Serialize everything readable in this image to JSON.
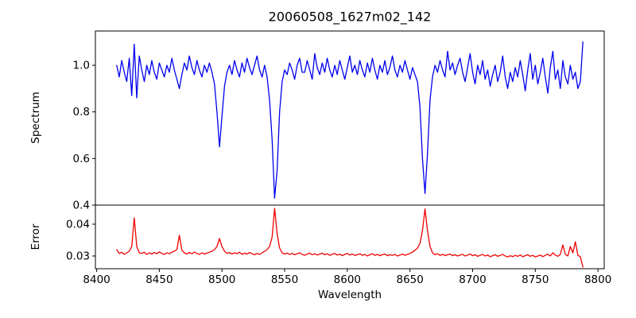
{
  "figure": {
    "background": "#ffffff",
    "spine_color": "#000000"
  },
  "chart_data": {
    "type": "line",
    "title": "20060508_1627m02_142",
    "xlabel": "Wavelength",
    "grid": false,
    "legend": null,
    "xlim": [
      8399,
      8805
    ],
    "xticks": [
      8400,
      8450,
      8500,
      8550,
      8600,
      8650,
      8700,
      8750,
      8800
    ],
    "xtick_labels": [
      "8400",
      "8450",
      "8500",
      "8550",
      "8600",
      "8650",
      "8700",
      "8750",
      "8800"
    ],
    "annotations": {
      "continuum_level": 1.0,
      "absorption_lines_wavelength": [
        8498,
        8542,
        8662
      ],
      "absorption_line_min_flux": [
        0.65,
        0.43,
        0.45
      ],
      "error_baseline": 0.03,
      "error_peaks_wavelength": [
        8430,
        8466,
        8498,
        8542,
        8662
      ],
      "error_peak_values": [
        0.042,
        0.0365,
        0.0355,
        0.045,
        0.0448
      ]
    },
    "subplots": [
      {
        "name": "spectrum",
        "ylabel": "Spectrum",
        "ylim": [
          0.4,
          1.147
        ],
        "yticks": [
          0.4,
          0.6,
          0.8,
          1.0
        ],
        "ytick_labels": [
          "0.4",
          "0.6",
          "0.8",
          "1.0"
        ],
        "line_color": "#0000ee",
        "x_start": 8416,
        "x_step": 2,
        "values": [
          1.0,
          0.95,
          1.02,
          0.97,
          0.93,
          1.03,
          0.87,
          1.09,
          0.86,
          1.04,
          0.98,
          0.93,
          1.0,
          0.96,
          1.02,
          0.97,
          0.94,
          1.01,
          0.98,
          0.95,
          1.0,
          0.97,
          1.03,
          0.98,
          0.94,
          0.9,
          0.96,
          1.01,
          0.98,
          1.04,
          0.99,
          0.96,
          1.02,
          0.98,
          0.95,
          1.0,
          0.97,
          1.01,
          0.97,
          0.92,
          0.8,
          0.65,
          0.78,
          0.91,
          0.97,
          1.0,
          0.96,
          1.02,
          0.98,
          0.95,
          1.01,
          0.97,
          1.03,
          0.99,
          0.96,
          1.0,
          1.04,
          0.98,
          0.95,
          1.0,
          0.95,
          0.85,
          0.68,
          0.43,
          0.55,
          0.8,
          0.93,
          0.98,
          0.96,
          1.01,
          0.98,
          0.94,
          1.0,
          1.03,
          0.97,
          0.97,
          1.02,
          0.98,
          0.94,
          1.05,
          0.99,
          0.96,
          1.01,
          0.97,
          1.03,
          0.98,
          0.95,
          1.0,
          0.96,
          1.02,
          0.98,
          0.94,
          0.99,
          1.04,
          0.97,
          1.0,
          0.96,
          1.02,
          0.98,
          0.95,
          1.01,
          0.97,
          1.03,
          0.98,
          0.94,
          1.0,
          0.97,
          1.02,
          0.96,
          0.99,
          1.04,
          0.98,
          0.95,
          1.0,
          0.97,
          1.02,
          0.98,
          0.94,
          0.99,
          0.96,
          0.93,
          0.82,
          0.6,
          0.45,
          0.62,
          0.85,
          0.95,
          1.0,
          0.97,
          1.02,
          0.98,
          0.95,
          1.06,
          0.98,
          1.01,
          0.96,
          1.0,
          1.03,
          0.97,
          0.93,
          0.99,
          1.05,
          0.97,
          0.92,
          1.0,
          0.96,
          1.02,
          0.94,
          0.98,
          0.91,
          0.96,
          1.0,
          0.93,
          0.97,
          1.04,
          0.95,
          0.9,
          0.97,
          0.93,
          0.99,
          0.95,
          1.02,
          0.96,
          0.89,
          0.98,
          1.05,
          0.94,
          1.0,
          0.92,
          0.97,
          1.03,
          0.95,
          0.88,
          0.99,
          1.06,
          0.94,
          0.98,
          0.9,
          1.02,
          0.95,
          0.92,
          1.0,
          0.94,
          0.97,
          0.9,
          0.93,
          1.1
        ]
      },
      {
        "name": "error",
        "ylabel": "Error",
        "ylim": [
          0.026,
          0.046
        ],
        "yticks": [
          0.03,
          0.04
        ],
        "ytick_labels": [
          "0.03",
          "0.04"
        ],
        "line_color": "#ee0000",
        "x_start": 8416,
        "x_step": 2,
        "values": [
          0.032,
          0.0308,
          0.0312,
          0.0305,
          0.031,
          0.0315,
          0.033,
          0.042,
          0.033,
          0.031,
          0.0308,
          0.0312,
          0.0305,
          0.031,
          0.0306,
          0.0311,
          0.0307,
          0.0313,
          0.0308,
          0.0305,
          0.031,
          0.0307,
          0.0312,
          0.0315,
          0.032,
          0.0365,
          0.0318,
          0.031,
          0.0306,
          0.0311,
          0.0307,
          0.0312,
          0.0308,
          0.0305,
          0.031,
          0.0306,
          0.0309,
          0.0312,
          0.0315,
          0.032,
          0.033,
          0.0355,
          0.033,
          0.0315,
          0.0308,
          0.0311,
          0.0306,
          0.031,
          0.0307,
          0.0312,
          0.0305,
          0.0309,
          0.0306,
          0.0311,
          0.0307,
          0.0304,
          0.0308,
          0.0305,
          0.031,
          0.0315,
          0.032,
          0.033,
          0.036,
          0.045,
          0.037,
          0.0325,
          0.031,
          0.0306,
          0.0309,
          0.0305,
          0.0308,
          0.0304,
          0.0307,
          0.031,
          0.0305,
          0.0302,
          0.0306,
          0.0309,
          0.0304,
          0.0307,
          0.0303,
          0.0306,
          0.0309,
          0.0304,
          0.0307,
          0.0302,
          0.0305,
          0.0308,
          0.0303,
          0.0306,
          0.0301,
          0.0305,
          0.0308,
          0.0303,
          0.0306,
          0.0302,
          0.0304,
          0.0307,
          0.0302,
          0.0305,
          0.03,
          0.0304,
          0.0307,
          0.0302,
          0.0305,
          0.0301,
          0.0304,
          0.0306,
          0.0301,
          0.0304,
          0.0302,
          0.0305,
          0.03,
          0.0303,
          0.0306,
          0.0302,
          0.0305,
          0.0308,
          0.0312,
          0.0318,
          0.0325,
          0.034,
          0.038,
          0.0448,
          0.038,
          0.033,
          0.031,
          0.0304,
          0.0307,
          0.0302,
          0.0305,
          0.0301,
          0.0304,
          0.0306,
          0.0301,
          0.0304,
          0.03,
          0.0303,
          0.0305,
          0.03,
          0.0303,
          0.0306,
          0.0301,
          0.0304,
          0.0299,
          0.0302,
          0.0305,
          0.03,
          0.0303,
          0.0298,
          0.0301,
          0.0304,
          0.0299,
          0.0302,
          0.0305,
          0.03,
          0.0297,
          0.0301,
          0.0298,
          0.0302,
          0.0299,
          0.0303,
          0.0298,
          0.0301,
          0.0304,
          0.0299,
          0.0302,
          0.0297,
          0.03,
          0.0303,
          0.0298,
          0.0302,
          0.0306,
          0.03,
          0.031,
          0.0303,
          0.0299,
          0.0305,
          0.0335,
          0.0305,
          0.03,
          0.033,
          0.031,
          0.0345,
          0.0302,
          0.0298,
          0.0265
        ]
      }
    ]
  }
}
